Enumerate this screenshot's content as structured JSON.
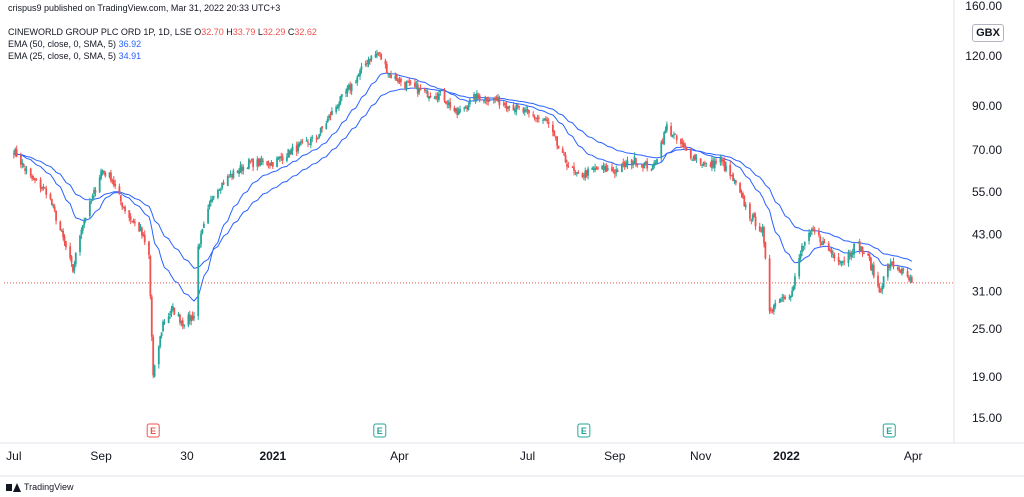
{
  "attribution": "crispus9 published on TradingView.com, Mar 31, 2022 20:33 UTC+3",
  "legend": {
    "symbol": "CINEWORLD GROUP PLC ORD 1P, 1D, LSE",
    "ohlc": [
      {
        "key": "O",
        "value": "32.70"
      },
      {
        "key": "H",
        "value": "33.79"
      },
      {
        "key": "L",
        "value": "32.29"
      },
      {
        "key": "C",
        "value": "32.62"
      }
    ],
    "indicators": [
      {
        "label": "EMA (50, close, 0, SMA, 5)",
        "value": "36.92"
      },
      {
        "label": "EMA (25, close, 0, SMA, 5)",
        "value": "34.91"
      }
    ]
  },
  "currency": "GBX",
  "footer": {
    "brand": "TradingView"
  },
  "colors": {
    "up": "#26a69a",
    "down": "#ef5350",
    "ema": "#2962ff",
    "price_line": "#ef5350",
    "grid": "#f0f3fa"
  },
  "chart_data": {
    "type": "candlestick",
    "y_scale": "log",
    "ylim": [
      13,
      160
    ],
    "y_ticks": [
      "160.00",
      "120.00",
      "90.00",
      "70.00",
      "55.00",
      "43.00",
      "31.00",
      "25.00",
      "19.00",
      "15.00"
    ],
    "x_ticks": [
      "Jul",
      "Sep",
      "30",
      "2021",
      "Apr",
      "Jul",
      "Sep",
      "Nov",
      "2022",
      "Apr"
    ],
    "earnings_markers": [
      {
        "label": "E",
        "date": "2020-10-08",
        "color": "#ef5350"
      },
      {
        "label": "E",
        "date": "2021-03-18",
        "color": "#26a69a"
      },
      {
        "label": "E",
        "date": "2021-08-10",
        "color": "#26a69a"
      },
      {
        "label": "E",
        "date": "2022-03-15",
        "color": "#26a69a"
      }
    ],
    "last_price": 32.62,
    "price_anchors": [
      [
        "2020-07-01",
        70
      ],
      [
        "2020-07-12",
        60
      ],
      [
        "2020-07-25",
        55
      ],
      [
        "2020-08-05",
        42
      ],
      [
        "2020-08-12",
        35
      ],
      [
        "2020-08-18",
        45
      ],
      [
        "2020-08-25",
        52
      ],
      [
        "2020-09-01",
        62
      ],
      [
        "2020-09-08",
        60
      ],
      [
        "2020-09-15",
        52
      ],
      [
        "2020-09-22",
        47
      ],
      [
        "2020-09-29",
        44
      ],
      [
        "2020-10-05",
        38
      ],
      [
        "2020-10-08",
        19
      ],
      [
        "2020-10-15",
        26
      ],
      [
        "2020-10-22",
        28
      ],
      [
        "2020-10-29",
        26
      ],
      [
        "2020-11-06",
        27
      ],
      [
        "2020-11-09",
        40
      ],
      [
        "2020-11-20",
        55
      ],
      [
        "2020-12-01",
        60
      ],
      [
        "2020-12-15",
        65
      ],
      [
        "2021-01-01",
        65
      ],
      [
        "2021-01-15",
        70
      ],
      [
        "2021-02-01",
        75
      ],
      [
        "2021-02-15",
        90
      ],
      [
        "2021-03-01",
        105
      ],
      [
        "2021-03-10",
        118
      ],
      [
        "2021-03-17",
        122
      ],
      [
        "2021-03-25",
        108
      ],
      [
        "2021-04-05",
        102
      ],
      [
        "2021-04-20",
        97
      ],
      [
        "2021-05-01",
        96
      ],
      [
        "2021-05-12",
        86
      ],
      [
        "2021-05-25",
        95
      ],
      [
        "2021-06-05",
        94
      ],
      [
        "2021-06-20",
        90
      ],
      [
        "2021-07-01",
        86
      ],
      [
        "2021-07-15",
        82
      ],
      [
        "2021-07-25",
        68
      ],
      [
        "2021-08-05",
        60
      ],
      [
        "2021-08-20",
        63
      ],
      [
        "2021-09-01",
        62
      ],
      [
        "2021-09-15",
        66
      ],
      [
        "2021-09-28",
        63
      ],
      [
        "2021-10-08",
        80
      ],
      [
        "2021-10-15",
        74
      ],
      [
        "2021-10-25",
        68
      ],
      [
        "2021-11-05",
        64
      ],
      [
        "2021-11-15",
        66
      ],
      [
        "2021-11-25",
        58
      ],
      [
        "2021-12-06",
        48
      ],
      [
        "2021-12-15",
        44
      ],
      [
        "2021-12-20",
        28
      ],
      [
        "2021-12-28",
        30
      ],
      [
        "2022-01-05",
        31
      ],
      [
        "2022-01-12",
        40
      ],
      [
        "2022-01-20",
        44
      ],
      [
        "2022-02-01",
        39
      ],
      [
        "2022-02-10",
        37
      ],
      [
        "2022-02-20",
        41
      ],
      [
        "2022-03-01",
        37
      ],
      [
        "2022-03-08",
        31
      ],
      [
        "2022-03-14",
        36
      ],
      [
        "2022-03-20",
        36
      ],
      [
        "2022-03-31",
        32.62
      ]
    ]
  }
}
